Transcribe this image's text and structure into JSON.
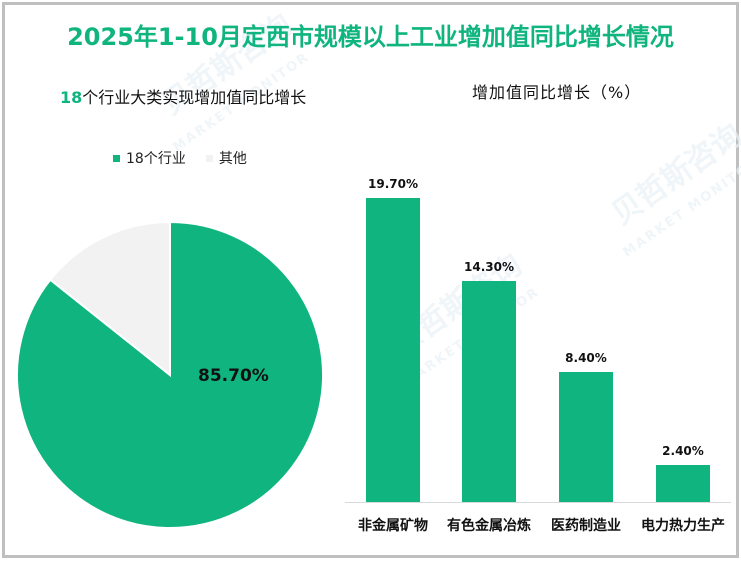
{
  "title": "2025年1-10月定西市规模以上工业增加值同比增长情况",
  "watermark": {
    "cn": "贝哲斯咨询",
    "en": "MARKET MONITOR"
  },
  "colors": {
    "accent": "#10b47e",
    "other": "#f2f2f2",
    "border": "#bfbfbf"
  },
  "left_panel": {
    "subtitle_num": "18",
    "subtitle_text": "个行业大类实现增加值同比增长",
    "legend": [
      {
        "label": "18个行业",
        "color": "#10b47e"
      },
      {
        "label": "其他",
        "color": "#f2f2f2"
      }
    ],
    "pie_label": "85.70%"
  },
  "right_panel": {
    "subtitle": "增加值同比增长（%）",
    "bars": [
      {
        "category": "非金属矿物",
        "value": 19.7,
        "label": "19.70%"
      },
      {
        "category": "有色金属冶炼",
        "value": 14.3,
        "label": "14.30%"
      },
      {
        "category": "医药制造业",
        "value": 8.4,
        "label": "8.40%"
      },
      {
        "category": "电力热力生产",
        "value": 2.4,
        "label": "2.40%"
      }
    ]
  },
  "chart_data": [
    {
      "type": "pie",
      "title": "18个行业大类实现增加值同比增长",
      "categories": [
        "18个行业",
        "其他"
      ],
      "values": [
        85.7,
        14.3
      ],
      "data_labels": [
        "85.70%"
      ],
      "legend_position": "top"
    },
    {
      "type": "bar",
      "title": "增加值同比增长（%）",
      "categories": [
        "非金属矿物",
        "有色金属冶炼",
        "医药制造业",
        "电力热力生产"
      ],
      "values": [
        19.7,
        14.3,
        8.4,
        2.4
      ],
      "data_labels": [
        "19.70%",
        "14.30%",
        "8.40%",
        "2.40%"
      ],
      "xlabel": "",
      "ylabel": "",
      "grid": false,
      "y_axis_visible": false
    }
  ]
}
